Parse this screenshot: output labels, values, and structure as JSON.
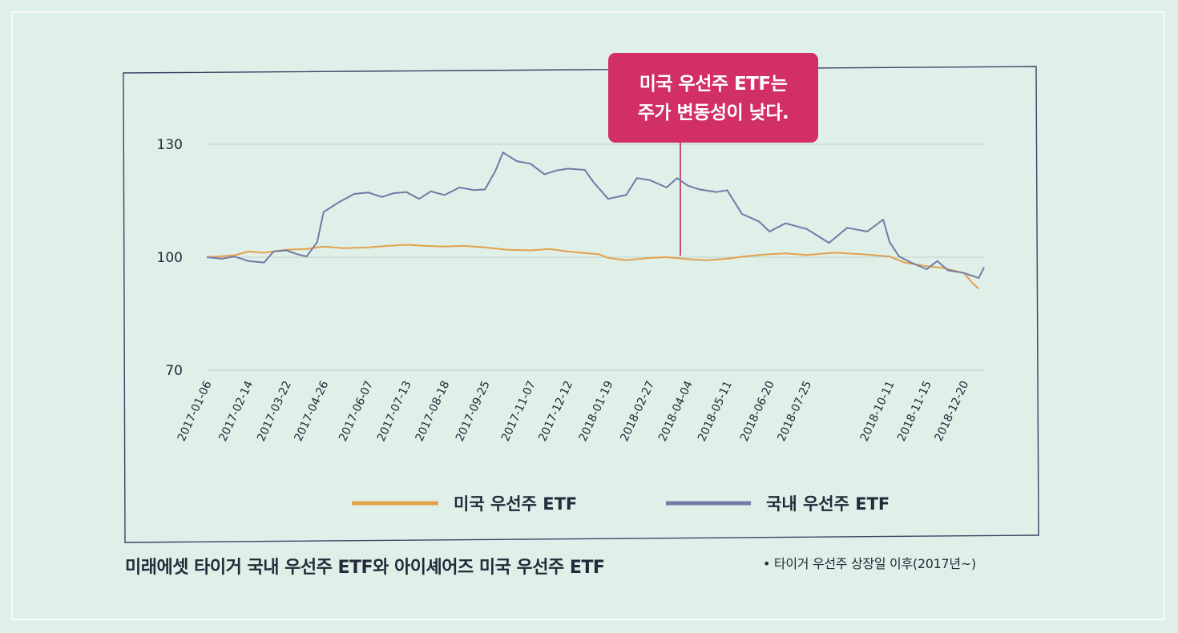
{
  "chart_data": {
    "type": "line",
    "title": "",
    "xlabel": "",
    "ylabel": "",
    "ylim": [
      70,
      130
    ],
    "yticks": [
      70,
      100,
      130
    ],
    "x_ticks": [
      "2017-01-06",
      "2017-02-14",
      "2017-03-22",
      "2017-04-26",
      "2017-06-07",
      "2017-07-13",
      "2017-08-18",
      "2017-09-25",
      "2017-11-07",
      "2017-12-12",
      "2018-01-19",
      "2018-02-27",
      "2018-04-04",
      "2018-05-11",
      "2018-06-20",
      "2018-07-25",
      "2018-10-11",
      "2018-11-15",
      "2018-12-20"
    ],
    "series": [
      {
        "name": "미국 우선주 ETF",
        "color": "#e3a04d",
        "points": [
          [
            "2017-01-06",
            100
          ],
          [
            "2017-02-01",
            100.5
          ],
          [
            "2017-02-14",
            101.5
          ],
          [
            "2017-03-01",
            101.2
          ],
          [
            "2017-03-22",
            102.0
          ],
          [
            "2017-04-10",
            102.2
          ],
          [
            "2017-04-26",
            102.8
          ],
          [
            "2017-05-15",
            102.4
          ],
          [
            "2017-06-07",
            102.6
          ],
          [
            "2017-06-25",
            103.0
          ],
          [
            "2017-07-13",
            103.3
          ],
          [
            "2017-08-01",
            103.0
          ],
          [
            "2017-08-18",
            102.8
          ],
          [
            "2017-09-05",
            103.0
          ],
          [
            "2017-09-25",
            102.6
          ],
          [
            "2017-10-15",
            102.0
          ],
          [
            "2017-11-07",
            101.8
          ],
          [
            "2017-11-25",
            102.2
          ],
          [
            "2017-12-12",
            101.5
          ],
          [
            "2018-01-01",
            101.0
          ],
          [
            "2018-01-10",
            100.8
          ],
          [
            "2018-01-19",
            99.8
          ],
          [
            "2018-02-05",
            99.2
          ],
          [
            "2018-02-27",
            99.8
          ],
          [
            "2018-03-15",
            100.0
          ],
          [
            "2018-04-04",
            99.5
          ],
          [
            "2018-04-20",
            99.2
          ],
          [
            "2018-05-11",
            99.6
          ],
          [
            "2018-05-30",
            100.3
          ],
          [
            "2018-06-20",
            100.8
          ],
          [
            "2018-07-05",
            101.0
          ],
          [
            "2018-07-25",
            100.6
          ],
          [
            "2018-08-20",
            101.2
          ],
          [
            "2018-09-15",
            100.8
          ],
          [
            "2018-10-11",
            100.2
          ],
          [
            "2018-10-25",
            98.6
          ],
          [
            "2018-11-15",
            97.6
          ],
          [
            "2018-11-30",
            97.2
          ],
          [
            "2018-12-20",
            95.8
          ],
          [
            "2018-12-28",
            93.2
          ],
          [
            "2019-01-03",
            91.6
          ]
        ]
      },
      {
        "name": "국내 우선주 ETF",
        "color": "#7379a6",
        "points": [
          [
            "2017-01-06",
            100
          ],
          [
            "2017-01-20",
            99.6
          ],
          [
            "2017-02-01",
            100.2
          ],
          [
            "2017-02-14",
            99.0
          ],
          [
            "2017-03-01",
            98.6
          ],
          [
            "2017-03-10",
            101.5
          ],
          [
            "2017-03-22",
            101.8
          ],
          [
            "2017-04-01",
            100.8
          ],
          [
            "2017-04-10",
            100.2
          ],
          [
            "2017-04-20",
            104.0
          ],
          [
            "2017-04-26",
            112.0
          ],
          [
            "2017-05-10",
            114.5
          ],
          [
            "2017-05-25",
            116.8
          ],
          [
            "2017-06-07",
            117.2
          ],
          [
            "2017-06-20",
            116.0
          ],
          [
            "2017-07-01",
            117.0
          ],
          [
            "2017-07-13",
            117.3
          ],
          [
            "2017-07-25",
            115.5
          ],
          [
            "2017-08-05",
            117.5
          ],
          [
            "2017-08-18",
            116.5
          ],
          [
            "2017-09-01",
            118.5
          ],
          [
            "2017-09-15",
            117.8
          ],
          [
            "2017-09-25",
            118.0
          ],
          [
            "2017-10-05",
            123.0
          ],
          [
            "2017-10-12",
            127.8
          ],
          [
            "2017-10-25",
            125.5
          ],
          [
            "2017-11-07",
            124.8
          ],
          [
            "2017-11-20",
            122.0
          ],
          [
            "2017-12-01",
            123.0
          ],
          [
            "2017-12-12",
            123.5
          ],
          [
            "2017-12-28",
            123.2
          ],
          [
            "2018-01-05",
            120.0
          ],
          [
            "2018-01-19",
            115.5
          ],
          [
            "2018-02-05",
            116.5
          ],
          [
            "2018-02-15",
            121.0
          ],
          [
            "2018-02-27",
            120.5
          ],
          [
            "2018-03-15",
            118.5
          ],
          [
            "2018-03-25",
            121.0
          ],
          [
            "2018-04-04",
            119.0
          ],
          [
            "2018-04-15",
            118.0
          ],
          [
            "2018-05-01",
            117.3
          ],
          [
            "2018-05-11",
            117.8
          ],
          [
            "2018-05-25",
            111.5
          ],
          [
            "2018-06-10",
            109.5
          ],
          [
            "2018-06-20",
            106.8
          ],
          [
            "2018-07-05",
            109.0
          ],
          [
            "2018-07-25",
            107.5
          ],
          [
            "2018-08-15",
            103.8
          ],
          [
            "2018-09-01",
            107.8
          ],
          [
            "2018-09-20",
            106.8
          ],
          [
            "2018-10-05",
            110.0
          ],
          [
            "2018-10-11",
            104.0
          ],
          [
            "2018-10-20",
            100.2
          ],
          [
            "2018-11-01",
            98.5
          ],
          [
            "2018-11-15",
            96.8
          ],
          [
            "2018-11-25",
            99.0
          ],
          [
            "2018-12-05",
            96.5
          ],
          [
            "2018-12-20",
            95.8
          ],
          [
            "2019-01-03",
            94.5
          ],
          [
            "2019-01-08",
            97.3
          ]
        ]
      }
    ],
    "annotation": [
      "미국 우선주 ETF는",
      "주가 변동성이 낮다."
    ],
    "annotation_date": "2018-03-28",
    "annotation_value": 100,
    "grid": true,
    "legend_position": "bottom"
  },
  "caption": "미래에셋 타이거 국내 우선주 ETF와 아이셰어즈 미국 우선주 ETF",
  "note": "• 타이거 우선주 상장일 이후(2017년~)"
}
